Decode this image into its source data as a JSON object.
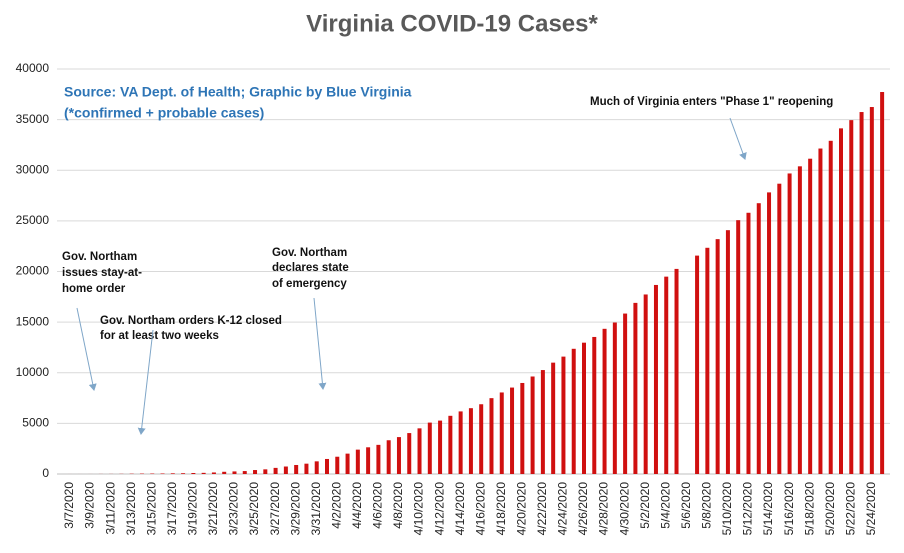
{
  "chart_data": {
    "type": "bar",
    "title": "Virginia COVID-19 Cases*",
    "subtitle_lines": [
      "Source: VA Dept. of Health; Graphic by Blue Virginia",
      "(*confirmed + probable cases)"
    ],
    "annotations": [
      {
        "lines": [
          "Gov. Northam",
          "issues stay-at-",
          "home order"
        ]
      },
      {
        "lines": [
          "Gov. Northam orders K-12 closed",
          "for at least two weeks"
        ]
      },
      {
        "lines": [
          "Gov. Northam",
          "declares state",
          "of emergency"
        ]
      },
      {
        "lines": [
          "Much of Virginia enters \"Phase 1\" reopening"
        ]
      }
    ],
    "categories": [
      "3/7/2020",
      null,
      "3/9/2020",
      null,
      "3/11/2020",
      null,
      "3/13/2020",
      null,
      "3/15/2020",
      null,
      "3/17/2020",
      null,
      "3/19/2020",
      null,
      "3/21/2020",
      null,
      "3/23/2020",
      null,
      "3/25/2020",
      null,
      "3/27/2020",
      null,
      "3/29/2020",
      null,
      "3/31/2020",
      null,
      "4/2/2020",
      null,
      "4/4/2020",
      null,
      "4/6/2020",
      null,
      "4/8/2020",
      null,
      "4/10/2020",
      null,
      "4/12/2020",
      null,
      "4/14/2020",
      null,
      "4/16/2020",
      null,
      "4/18/2020",
      null,
      "4/20/2020",
      null,
      "4/22/2020",
      null,
      "4/24/2020",
      null,
      "4/26/2020",
      null,
      "4/28/2020",
      null,
      "4/30/2020",
      null,
      "5/2/2020",
      null,
      "5/4/2020",
      null,
      "5/6/2020",
      null,
      "5/8/2020",
      null,
      "5/10/2020",
      null,
      "5/12/2020",
      null,
      "5/14/2020",
      null,
      "5/16/2020",
      null,
      "5/18/2020",
      null,
      "5/20/2020",
      null,
      "5/22/2020",
      null,
      "5/24/2020",
      null
    ],
    "values": [
      2,
      2,
      3,
      8,
      9,
      17,
      30,
      41,
      45,
      51,
      67,
      77,
      99,
      114,
      152,
      219,
      254,
      290,
      391,
      460,
      604,
      739,
      890,
      1020,
      1250,
      1484,
      1706,
      2012,
      2407,
      2637,
      2878,
      3333,
      3645,
      4042,
      4509,
      5077,
      5274,
      5747,
      6182,
      6500,
      6889,
      7491,
      8053,
      8537,
      8990,
      9630,
      10266,
      10998,
      11594,
      12366,
      12970,
      13535,
      14339,
      14961,
      15846,
      16901,
      17731,
      18671,
      19492,
      20256,
      null,
      21570,
      22342,
      23196,
      24081,
      25070,
      25800,
      26746,
      27813,
      28672,
      29683,
      30388,
      31140,
      32145,
      32908,
      34137,
      34950,
      35749,
      36244,
      37727
    ],
    "color": "#d01010",
    "ylim": [
      0,
      40000
    ],
    "yticks": [
      0,
      5000,
      10000,
      15000,
      20000,
      25000,
      30000,
      35000,
      40000
    ],
    "grid": true
  }
}
